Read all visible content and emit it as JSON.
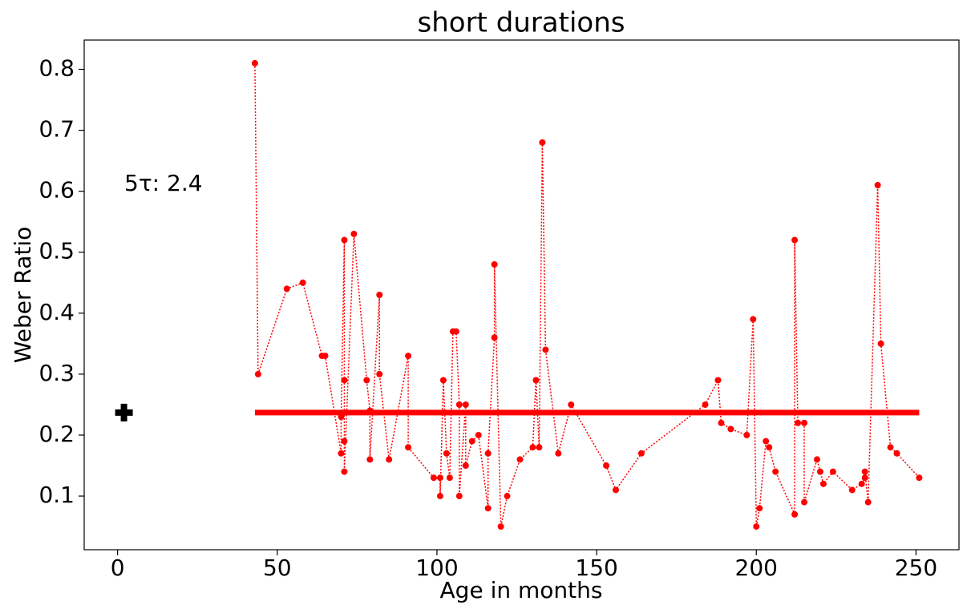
{
  "chart_data": {
    "type": "line",
    "title": "short durations",
    "xlabel": "Age in months",
    "ylabel": "Weber Ratio",
    "annotation": "5τ: 2.4",
    "series": [
      {
        "color": "#ff0000",
        "x": [
          43,
          44,
          53,
          58,
          64,
          65,
          70,
          70,
          71,
          71,
          71,
          71,
          74,
          78,
          79,
          79,
          82,
          82,
          85,
          91,
          91,
          99,
          101,
          101,
          102,
          103,
          104,
          105,
          106,
          107,
          107,
          109,
          109,
          111,
          113,
          116,
          116,
          118,
          118,
          120,
          122,
          126,
          130,
          131,
          132,
          133,
          134,
          138,
          142,
          153,
          156,
          164,
          184,
          188,
          189,
          192,
          197,
          199,
          200,
          201,
          203,
          204,
          206,
          212,
          212,
          213,
          215,
          215,
          219,
          220,
          221,
          224,
          230,
          233,
          234,
          234,
          235,
          238,
          239,
          242,
          244,
          251
        ],
        "y": [
          0.81,
          0.3,
          0.44,
          0.45,
          0.33,
          0.33,
          0.17,
          0.23,
          0.52,
          0.29,
          0.19,
          0.14,
          0.53,
          0.29,
          0.24,
          0.16,
          0.43,
          0.3,
          0.16,
          0.33,
          0.18,
          0.13,
          0.13,
          0.1,
          0.29,
          0.17,
          0.13,
          0.37,
          0.37,
          0.25,
          0.1,
          0.25,
          0.15,
          0.19,
          0.2,
          0.08,
          0.17,
          0.36,
          0.48,
          0.05,
          0.1,
          0.16,
          0.18,
          0.29,
          0.18,
          0.68,
          0.34,
          0.17,
          0.25,
          0.15,
          0.11,
          0.17,
          0.25,
          0.29,
          0.22,
          0.21,
          0.2,
          0.39,
          0.05,
          0.08,
          0.19,
          0.18,
          0.14,
          0.07,
          0.52,
          0.22,
          0.22,
          0.09,
          0.16,
          0.14,
          0.12,
          0.14,
          0.11,
          0.12,
          0.13,
          0.14,
          0.09,
          0.61,
          0.35,
          0.18,
          0.17,
          0.13
        ]
      }
    ],
    "hline": {
      "y": 0.237,
      "xmin": 43,
      "xmax": 251,
      "color": "#ff0000"
    },
    "marker": {
      "x": 2,
      "y": 0.237,
      "color": "#000000"
    },
    "xlim": [
      -10.45,
      263.45
    ],
    "ylim": [
      0.012,
      0.848
    ],
    "xticks": [
      0,
      50,
      100,
      150,
      200,
      250
    ],
    "yticks": [
      0.1,
      0.2,
      0.3,
      0.4,
      0.5,
      0.6,
      0.7,
      0.8
    ]
  }
}
